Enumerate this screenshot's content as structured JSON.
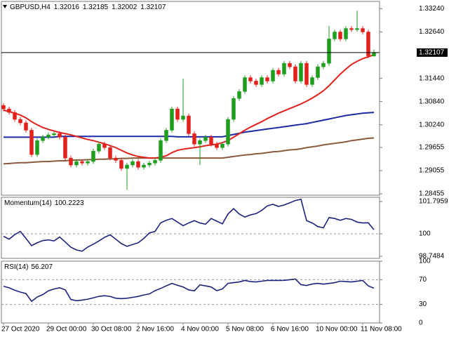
{
  "chart_data": [
    {
      "type": "candlestick",
      "title": "GBPUSD,H4",
      "categories": [
        "27 Oct 2020",
        null,
        null,
        null,
        null,
        null,
        null,
        null,
        "29 Oct 00:00",
        null,
        null,
        null,
        null,
        null,
        null,
        null,
        "30 Oct 08:00",
        null,
        null,
        null,
        null,
        null,
        null,
        null,
        "2 Nov 16:00",
        null,
        null,
        null,
        null,
        null,
        null,
        null,
        "4 Nov 00:00",
        null,
        null,
        null,
        null,
        null,
        null,
        null,
        "5 Nov 08:00",
        null,
        null,
        null,
        null,
        null,
        null,
        null,
        "6 Nov 16:00",
        null,
        null,
        null,
        null,
        null,
        null,
        null,
        "10 Nov 00:00",
        null,
        null,
        null,
        null,
        null,
        null,
        null,
        "11 Nov 08:00",
        null,
        null
      ],
      "open": [
        1.3074,
        1.3065,
        1.3056,
        1.3038,
        1.3029,
        1.301,
        1.2947,
        1.2983,
        1.2992,
        1.2998,
        1.3001,
        1.2992,
        1.2938,
        1.292,
        1.2929,
        1.2925,
        1.2929,
        1.2956,
        1.2974,
        1.2965,
        1.2938,
        1.2932,
        1.2911,
        1.292,
        1.2929,
        1.2914,
        1.292,
        1.2925,
        1.2932,
        1.2983,
        1.301,
        1.3065,
        1.3038,
        1.3047,
        1.3001,
        1.2974,
        1.2983,
        1.2992,
        1.2974,
        1.2965,
        1.2974,
        1.3038,
        1.3092,
        1.311,
        1.3146,
        1.3137,
        1.3128,
        1.3146,
        1.3137,
        1.3165,
        1.3155,
        1.3183,
        1.3174,
        1.3137,
        1.3183,
        1.3128,
        1.3146,
        1.3174,
        1.3183,
        1.3246,
        1.3264,
        1.3246,
        1.3273,
        1.327,
        1.3273,
        1.3264,
        1.32016
      ],
      "high": [
        1.308,
        1.3071,
        1.3062,
        1.3044,
        1.3035,
        1.3016,
        1.2989,
        1.2998,
        1.3004,
        1.3007,
        1.3007,
        1.2998,
        1.2944,
        1.2935,
        1.2935,
        1.2935,
        1.2962,
        1.298,
        1.298,
        1.2971,
        1.2944,
        1.2938,
        1.2926,
        1.2935,
        1.2935,
        1.2926,
        1.2931,
        1.2938,
        1.2989,
        1.3016,
        1.3071,
        1.3071,
        1.3143,
        1.3053,
        1.3007,
        1.2989,
        1.2998,
        1.2998,
        1.298,
        1.298,
        1.3044,
        1.3098,
        1.3116,
        1.3152,
        1.3152,
        1.3143,
        1.3152,
        1.3152,
        1.3171,
        1.3171,
        1.3189,
        1.3189,
        1.318,
        1.3189,
        1.3189,
        1.3152,
        1.318,
        1.3189,
        1.328,
        1.327,
        1.327,
        1.3279,
        1.3279,
        1.3319,
        1.3279,
        1.327,
        1.32185
      ],
      "low": [
        1.3059,
        1.305,
        1.3032,
        1.3023,
        1.3004,
        1.2941,
        1.2941,
        1.2977,
        1.2986,
        1.2992,
        1.2986,
        1.2932,
        1.2914,
        1.2914,
        1.2919,
        1.2919,
        1.2923,
        1.295,
        1.2959,
        1.2932,
        1.2926,
        1.2905,
        1.2856,
        1.2914,
        1.2908,
        1.2908,
        1.2914,
        1.2919,
        1.2926,
        1.2977,
        1.3004,
        1.3032,
        1.3032,
        1.2995,
        1.2968,
        1.292,
        1.2977,
        1.2968,
        1.2959,
        1.2959,
        1.2968,
        1.3032,
        1.3086,
        1.3104,
        1.3131,
        1.3122,
        1.3122,
        1.3131,
        1.3131,
        1.3149,
        1.3149,
        1.3168,
        1.3131,
        1.3131,
        1.3122,
        1.3122,
        1.314,
        1.3168,
        1.3177,
        1.324,
        1.324,
        1.324,
        1.3264,
        1.3264,
        1.3258,
        1.3196,
        1.32002
      ],
      "close": [
        1.3065,
        1.3056,
        1.3038,
        1.3029,
        1.301,
        1.2947,
        1.2983,
        1.2992,
        1.2998,
        1.3001,
        1.2992,
        1.2938,
        1.292,
        1.2929,
        1.2925,
        1.2929,
        1.2956,
        1.2974,
        1.2965,
        1.2938,
        1.2932,
        1.2911,
        1.292,
        1.2929,
        1.2914,
        1.292,
        1.2925,
        1.2932,
        1.2983,
        1.301,
        1.3065,
        1.3038,
        1.3047,
        1.3001,
        1.2974,
        1.2983,
        1.2992,
        1.2974,
        1.2965,
        1.2974,
        1.3038,
        1.3092,
        1.311,
        1.3146,
        1.3137,
        1.3128,
        1.3146,
        1.3137,
        1.3165,
        1.3155,
        1.3183,
        1.3174,
        1.3137,
        1.3183,
        1.3128,
        1.3146,
        1.3174,
        1.3183,
        1.3246,
        1.3264,
        1.3246,
        1.3273,
        1.327,
        1.3273,
        1.3264,
        1.3202,
        1.32107
      ],
      "up_color": "#1f9e1f",
      "down_color": "#e3211c",
      "overlays": [
        {
          "color": "#8b5a3c",
          "values": [
            1.2923,
            1.2924,
            1.2925,
            1.2926,
            1.2926,
            1.2927,
            1.2928,
            1.2929,
            1.2929,
            1.293,
            1.2931,
            1.2931,
            1.2932,
            1.2933,
            1.2933,
            1.2934,
            1.2934,
            1.2935,
            1.2935,
            1.2936,
            1.2936,
            1.2937,
            1.2937,
            1.2938,
            1.2938,
            1.2938,
            1.2938,
            1.2938,
            1.2938,
            1.2938,
            1.2938,
            1.2938,
            1.2938,
            1.2938,
            1.2938,
            1.2938,
            1.2938,
            1.2938,
            1.2938,
            1.2938,
            1.294,
            1.2942,
            1.2944,
            1.2946,
            1.2947,
            1.2949,
            1.295,
            1.2952,
            1.2954,
            1.2955,
            1.2957,
            1.2959,
            1.296,
            1.2962,
            1.2965,
            1.2967,
            1.2969,
            1.2972,
            1.2974,
            1.2976,
            1.2978,
            1.298,
            1.2983,
            1.2985,
            1.2987,
            1.2989,
            1.299
          ]
        },
        {
          "color": "#1c2aa8",
          "values": [
            1.2992,
            1.2992,
            1.2992,
            1.2992,
            1.2992,
            1.2992,
            1.2992,
            1.2992,
            1.2992,
            1.2992,
            1.2994,
            1.2994,
            1.2994,
            1.2994,
            1.2994,
            1.2994,
            1.2994,
            1.2994,
            1.2994,
            1.2994,
            1.2994,
            1.2994,
            1.2994,
            1.2994,
            1.2994,
            1.2994,
            1.2994,
            1.2994,
            1.2994,
            1.2994,
            1.2994,
            1.2993,
            1.2993,
            1.2993,
            1.2993,
            1.2993,
            1.2993,
            1.2993,
            1.2993,
            1.2993,
            1.2996,
            1.2999,
            1.3002,
            1.3005,
            1.3007,
            1.3009,
            1.3011,
            1.3013,
            1.3015,
            1.3017,
            1.3019,
            1.3021,
            1.3023,
            1.3025,
            1.3027,
            1.303,
            1.3033,
            1.3036,
            1.3039,
            1.3042,
            1.3045,
            1.3048,
            1.305,
            1.3052,
            1.3054,
            1.3055,
            1.3056
          ]
        },
        {
          "color": "#e3211c",
          "values": [
            1.3062,
            1.3058,
            1.3054,
            1.3049,
            1.3042,
            1.3032,
            1.3024,
            1.3017,
            1.3012,
            1.3008,
            1.3004,
            1.3001,
            1.2998,
            1.2994,
            1.299,
            1.2986,
            1.2983,
            1.2979,
            1.2975,
            1.297,
            1.2965,
            1.2958,
            1.2951,
            1.2946,
            1.2942,
            1.294,
            1.2938,
            1.2938,
            1.294,
            1.2944,
            1.2952,
            1.2958,
            1.2961,
            1.2963,
            1.2965,
            1.2967,
            1.297,
            1.2972,
            1.2974,
            1.2978,
            1.2983,
            1.2992,
            1.3001,
            1.301,
            1.3018,
            1.3025,
            1.3032,
            1.304,
            1.3047,
            1.3054,
            1.306,
            1.3066,
            1.3072,
            1.3078,
            1.3085,
            1.3093,
            1.3102,
            1.3112,
            1.3125,
            1.314,
            1.3155,
            1.3168,
            1.318,
            1.3188,
            1.3195,
            1.32,
            1.3205
          ]
        }
      ],
      "ylim": [
        1.2842,
        1.3343
      ],
      "yticks": [
        {
          "value": 1.3324,
          "label": "1.33240"
        },
        {
          "value": 1.3264,
          "label": "1.32640"
        },
        {
          "value": 1.3144,
          "label": "1.31440"
        },
        {
          "value": 1.3084,
          "label": "1.30840"
        },
        {
          "value": 1.3024,
          "label": "1.30240"
        },
        1.29655,
        1.29055,
        1.28455
      ]
    },
    {
      "type": "line",
      "title": "Momentum(14)",
      "color": "#1c237e",
      "values": [
        99.86,
        99.7,
        99.95,
        100.13,
        99.74,
        99.34,
        99.5,
        99.62,
        99.66,
        99.6,
        99.82,
        99.54,
        99.25,
        99.1,
        99.03,
        99.26,
        99.42,
        99.6,
        99.8,
        99.94,
        99.7,
        99.45,
        99.3,
        99.4,
        99.5,
        99.74,
        100.05,
        100.13,
        100.61,
        100.75,
        100.85,
        100.65,
        100.45,
        100.6,
        100.73,
        100.6,
        100.53,
        100.85,
        100.7,
        100.55,
        101.1,
        101.4,
        101.1,
        100.93,
        101.05,
        101.12,
        101.3,
        101.55,
        101.64,
        101.52,
        101.6,
        101.72,
        101.85,
        101.92,
        100.73,
        100.6,
        100.4,
        100.33,
        100.9,
        100.85,
        100.75,
        100.85,
        100.8,
        100.65,
        100.6,
        100.61,
        100.2223
      ],
      "ylim": [
        98.63,
        102.03
      ],
      "yticks": [
        101.7959,
        100,
        98.7484
      ],
      "reference_lines": [
        100
      ]
    },
    {
      "type": "line",
      "title": "RSI(14)",
      "color": "#1c237e",
      "values": [
        59.4,
        57.0,
        53.0,
        50.0,
        47.6,
        35.0,
        42.0,
        46.0,
        52.0,
        55.0,
        57.0,
        53.5,
        38.0,
        36.0,
        37.0,
        38.5,
        40.6,
        43.0,
        44.1,
        42.9,
        40.0,
        39.4,
        40.0,
        41.5,
        43.0,
        45.3,
        47.0,
        52.3,
        55.9,
        60.0,
        64.1,
        61.0,
        58.2,
        53.5,
        52.0,
        61.7,
        60.0,
        58.2,
        52.3,
        55.0,
        64.1,
        65.3,
        66.4,
        68.8,
        67.0,
        66.4,
        67.6,
        68.8,
        68.8,
        68.8,
        69.0,
        70.0,
        71.1,
        62.0,
        60.6,
        63.0,
        64.1,
        62.9,
        64.0,
        65.3,
        67.6,
        67.0,
        66.4,
        67.6,
        68.8,
        60.0,
        56.207
      ],
      "ylim": [
        0,
        100
      ],
      "yticks": [
        100,
        70,
        30,
        0
      ],
      "reference_lines": [
        70,
        30
      ]
    }
  ]
}
